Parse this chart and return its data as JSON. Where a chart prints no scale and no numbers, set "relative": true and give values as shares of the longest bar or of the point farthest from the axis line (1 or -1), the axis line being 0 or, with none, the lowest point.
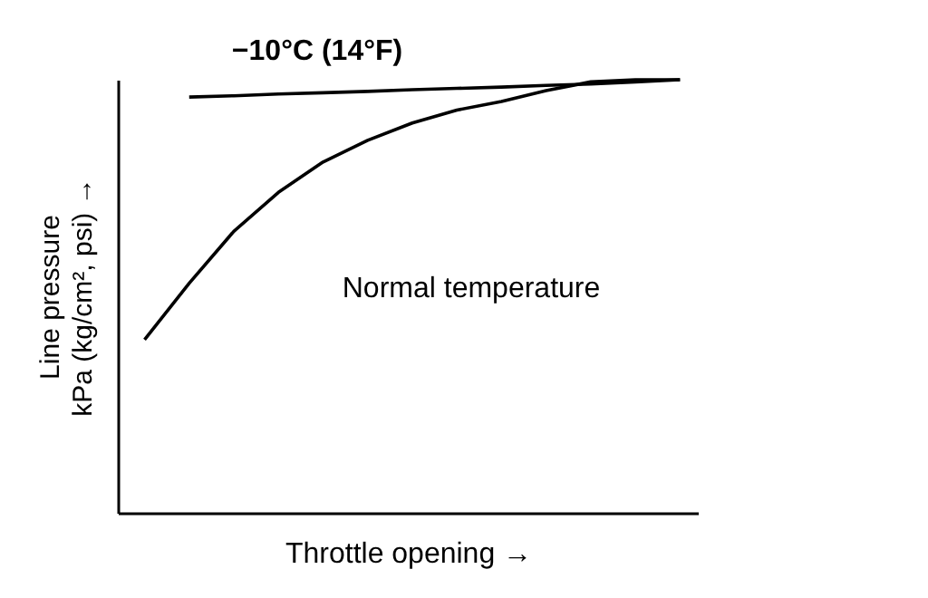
{
  "chart_data": {
    "type": "line",
    "relative": true,
    "xlabel": "Throttle opening →",
    "ylabel": "Line pressure\nkPa (kg/cm², psi) →",
    "categories": [
      null,
      null,
      null,
      null,
      null,
      null,
      null,
      null,
      null,
      null,
      null,
      null,
      null
    ],
    "series": [
      {
        "color": "#000000",
        "values": [
          null,
          0.96,
          0.963,
          0.967,
          0.97,
          0.973,
          0.977,
          0.98,
          0.983,
          0.987,
          0.99,
          0.995,
          1.0
        ]
      },
      {
        "color": "#000000",
        "values": [
          0.4,
          0.53,
          0.65,
          0.74,
          0.81,
          0.86,
          0.9,
          0.93,
          0.95,
          0.975,
          0.995,
          1.0,
          1.0
        ]
      }
    ],
    "annotations": [
      "−10°C (14°F)",
      "Normal temperature"
    ],
    "grid": false,
    "marker": "none",
    "line_style": "solid"
  }
}
